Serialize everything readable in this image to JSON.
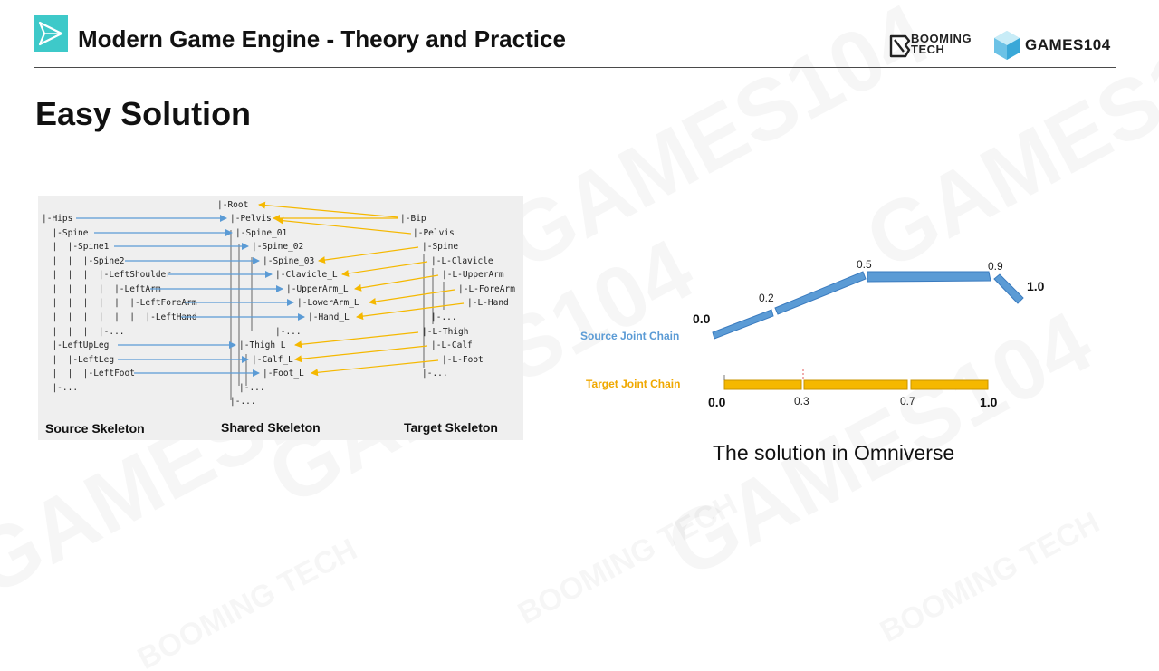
{
  "header": {
    "title": "Modern Game Engine - Theory and Practice",
    "booming_logo_text": "BOOMING TECH",
    "games_logo_text": "GAMES104"
  },
  "slide": {
    "title": "Easy Solution",
    "caption": "The solution in Omniverse"
  },
  "skeleton_diagram": {
    "source": {
      "caption": "Source Skeleton",
      "lines": [
        "|-Hips",
        "  |-Spine",
        "  |  |-Spine1",
        "  |  |  |-Spine2",
        "  |  |  |  |-LeftShoulder",
        "  |  |  |  |  |-LeftArm",
        "  |  |  |  |  |  |-LeftForeArm",
        "  |  |  |  |  |  |  |-LeftHand",
        "  |  |  |  |-...",
        "  |-LeftUpLeg",
        "  |  |-LeftLeg",
        "  |  |  |-LeftFoot",
        "  |-..."
      ]
    },
    "shared": {
      "caption": "Shared Skeleton",
      "lines": [
        "|-Root",
        "|-Pelvis",
        "|-Spine_01",
        "|-Spine_02",
        "|-Spine_03",
        "|-Clavicle_L",
        "|-UpperArm_L",
        "|-LowerArm_L",
        "|-Hand_L",
        "|-...",
        "|-Thigh_L",
        "|-Calf_L",
        "|-Foot_L",
        "|-...",
        "|-..."
      ]
    },
    "target": {
      "caption": "Target Skeleton",
      "lines": [
        "|-Bip",
        "|-Pelvis",
        "|-Spine",
        "|-L-Clavicle",
        "|-L-UpperArm",
        "|-L-ForeArm",
        "|-L-Hand",
        "|-...",
        "|-L-Thigh",
        "|-L-Calf",
        "|-L-Foot",
        "|-..."
      ]
    },
    "colors": {
      "source_arrows": "#5b9bd5",
      "target_arrows": "#f5b800",
      "panel_bg": "#efefef"
    }
  },
  "joint_chain": {
    "source_label": "Source Joint Chain",
    "target_label": "Target Joint Chain",
    "source_values": [
      "0.0",
      "0.2",
      "0.5",
      "0.9",
      "1.0"
    ],
    "target_values": [
      "0.0",
      "0.3",
      "0.7",
      "1.0"
    ],
    "source_color": "#5b9bd5",
    "target_color": "#f5b800",
    "source_label_color": "#5b9bd5",
    "target_label_color": "#f0a800"
  },
  "watermark": {
    "text": "GAMES104",
    "sub_text": "BOOMING TECH"
  }
}
